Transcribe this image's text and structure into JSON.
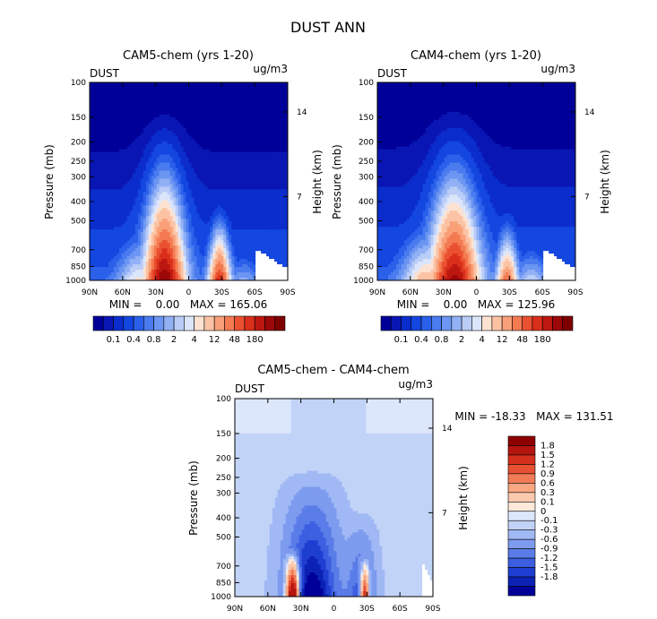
{
  "page_title": "DUST ANN",
  "colors": {
    "blues": [
      "#000099",
      "#0a16b3",
      "#0b2dcc",
      "#1446e0",
      "#2a60ea",
      "#4a7bef",
      "#6c96f2",
      "#92b1f5",
      "#bacdf7",
      "#dce6fb"
    ],
    "reds": [
      "#fde2d1",
      "#fbc3a4",
      "#f9a078",
      "#f47a52",
      "#ea5131",
      "#d92f1b",
      "#bc1710",
      "#9c0709",
      "#7d0000"
    ],
    "diff_blues": [
      "#000099",
      "#0c22b5",
      "#1e3ed1",
      "#3c5ee0",
      "#5a7ce8",
      "#7d9bef",
      "#a0b8f4",
      "#c2d3f8",
      "#dce7fb"
    ],
    "diff_reds": [
      "#fde8d9",
      "#fbc9ae",
      "#f8a783",
      "#f17b57",
      "#e65133",
      "#d42f1d",
      "#b4150e",
      "#8f0000"
    ]
  },
  "chart_data": [
    {
      "type": "contour",
      "title": "CAM5-chem (yrs 1-20)",
      "variable_label": "DUST",
      "units_label": "ug/m3",
      "xlabel": "",
      "ylabel": "Pressure (mb)",
      "right_label": "Height (km)",
      "x_ticks": [
        "90N",
        "60N",
        "30N",
        "0",
        "30S",
        "60S",
        "90S"
      ],
      "y_ticks": [
        "100",
        "150",
        "200",
        "250",
        "300",
        "400",
        "500",
        "700",
        "850",
        "1000"
      ],
      "y_values": [
        100,
        150,
        200,
        250,
        300,
        400,
        500,
        700,
        850,
        1000
      ],
      "right_ticks": [
        "14",
        "7"
      ],
      "right_tick_pressure": [
        141,
        377
      ],
      "stats": "MIN =    0.00   MAX = 165.06",
      "colorbar_labels": [
        "0.1",
        "0.4",
        "0.8",
        "2",
        "4",
        "12",
        "48",
        "180"
      ],
      "peaks": [
        {
          "lat": 22,
          "top_pressure": 105,
          "sigma_lat": 13,
          "amp_log10": 3.45
        },
        {
          "lat": -28,
          "top_pressure": 280,
          "sigma_lat": 7,
          "amp_log10": 2.75
        },
        {
          "lat": 45,
          "top_pressure": 300,
          "sigma_lat": 14,
          "amp_log10": 1.2
        },
        {
          "lat": -50,
          "top_pressure": 450,
          "sigma_lat": 9,
          "amp_log10": 0.6
        }
      ],
      "right_cutoff_lat": -62
    },
    {
      "type": "contour",
      "title": "CAM4-chem (yrs 1-20)",
      "variable_label": "DUST",
      "units_label": "ug/m3",
      "xlabel": "",
      "ylabel": "Pressure (mb)",
      "right_label": "Height (km)",
      "x_ticks": [
        "90N",
        "60N",
        "30N",
        "0",
        "30S",
        "60S",
        "90S"
      ],
      "y_ticks": [
        "100",
        "150",
        "200",
        "250",
        "300",
        "400",
        "500",
        "700",
        "850",
        "1000"
      ],
      "y_values": [
        100,
        150,
        200,
        250,
        300,
        400,
        500,
        700,
        850,
        1000
      ],
      "right_ticks": [
        "14",
        "7"
      ],
      "right_tick_pressure": [
        141,
        377
      ],
      "stats": "MIN =    0.00   MAX = 125.96",
      "colorbar_labels": [
        "0.1",
        "0.4",
        "0.8",
        "2",
        "4",
        "12",
        "48",
        "180"
      ],
      "peaks": [
        {
          "lat": 20,
          "top_pressure": 100,
          "sigma_lat": 16,
          "amp_log10": 3.25
        },
        {
          "lat": -28,
          "top_pressure": 300,
          "sigma_lat": 7,
          "amp_log10": 2.2
        },
        {
          "lat": 45,
          "top_pressure": 280,
          "sigma_lat": 16,
          "amp_log10": 1.6
        },
        {
          "lat": -50,
          "top_pressure": 420,
          "sigma_lat": 10,
          "amp_log10": 0.9
        }
      ],
      "right_cutoff_lat": -62
    },
    {
      "type": "contour",
      "title": "CAM5-chem - CAM4-chem",
      "variable_label": "DUST",
      "units_label": "ug/m3",
      "xlabel": "",
      "ylabel": "Pressure (mb)",
      "right_label": "Height (km)",
      "x_ticks": [
        "90N",
        "60N",
        "30N",
        "0",
        "30S",
        "60S",
        "90S"
      ],
      "y_ticks": [
        "100",
        "150",
        "200",
        "250",
        "300",
        "400",
        "500",
        "700",
        "850",
        "1000"
      ],
      "y_values": [
        100,
        150,
        200,
        250,
        300,
        400,
        500,
        700,
        850,
        1000
      ],
      "right_ticks": [
        "14",
        "7"
      ],
      "right_tick_pressure": [
        141,
        377
      ],
      "stats": "MIN = -18.33   MAX = 131.51",
      "colorbar_labels": [
        "1.8",
        "1.5",
        "1.2",
        "0.9",
        "0.6",
        "0.3",
        "0.1",
        "0",
        "-0.1",
        "-0.3",
        "-0.6",
        "-0.9",
        "-1.2",
        "-1.5",
        "-1.8"
      ],
      "value_range": [
        -18.33,
        131.51
      ]
    }
  ]
}
